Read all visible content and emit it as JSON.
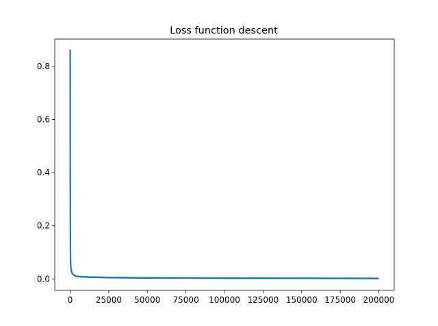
{
  "chart_data": {
    "type": "line",
    "title": "Loss function descent",
    "xlabel": "",
    "ylabel": "",
    "xlim": [
      -10000,
      210000
    ],
    "ylim": [
      -0.043,
      0.903
    ],
    "xticks": [
      0,
      25000,
      50000,
      75000,
      100000,
      125000,
      150000,
      175000,
      200000
    ],
    "yticks": [
      0.0,
      0.2,
      0.4,
      0.6,
      0.8
    ],
    "xtick_labels": [
      "0",
      "25000",
      "50000",
      "75000",
      "100000",
      "125000",
      "150000",
      "175000",
      "200000"
    ],
    "ytick_labels": [
      "0.0",
      "0.2",
      "0.4",
      "0.6",
      "0.8"
    ],
    "grid": false,
    "series": [
      {
        "color": "#1f77b4",
        "x": [
          0,
          50,
          100,
          200,
          300,
          500,
          800,
          1200,
          2000,
          3000,
          5000,
          8000,
          12000,
          20000,
          30000,
          50000,
          75000,
          100000,
          125000,
          150000,
          175000,
          200000
        ],
        "y": [
          0.863,
          0.5,
          0.25,
          0.085,
          0.06,
          0.04,
          0.03,
          0.022,
          0.016,
          0.012,
          0.009,
          0.008,
          0.007,
          0.006,
          0.005,
          0.004,
          0.0035,
          0.003,
          0.0028,
          0.0025,
          0.0022,
          0.002
        ]
      }
    ],
    "overlay_series": [
      {
        "color": "#2ca02c",
        "x": [
          0,
          150
        ],
        "y": [
          0.863,
          0.06
        ]
      }
    ]
  }
}
